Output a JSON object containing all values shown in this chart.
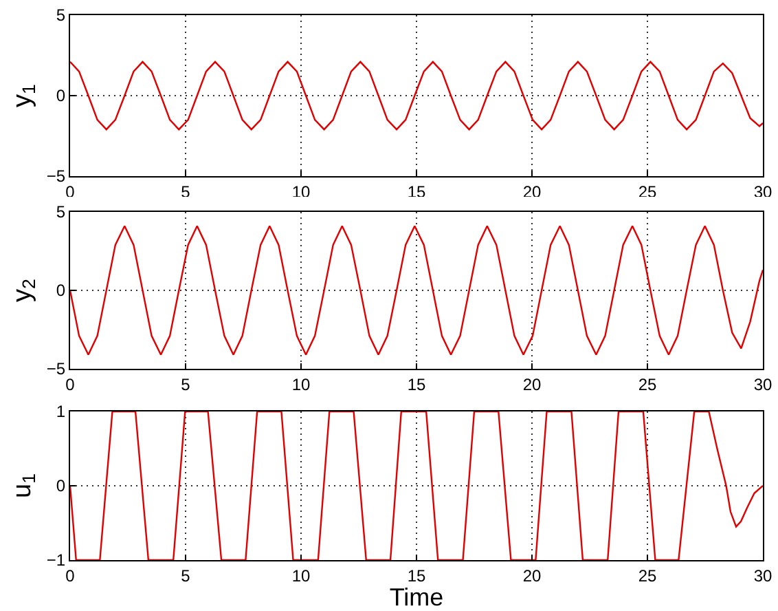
{
  "chart_data": [
    {
      "type": "line",
      "ylabel": "y$_{1}$",
      "xlim": [
        0,
        30
      ],
      "ylim": [
        -5,
        5
      ],
      "xticks": [
        0,
        5,
        10,
        15,
        20,
        25,
        30
      ],
      "yticks": [
        -5,
        0,
        5
      ],
      "grid": true,
      "series": [
        {
          "color": "#e00000",
          "x": [
            0,
            0.39,
            0.79,
            1.18,
            1.57,
            1.96,
            2.36,
            2.75,
            3.14,
            3.53,
            3.93,
            4.32,
            4.71,
            5.11,
            5.5,
            5.89,
            6.28,
            6.68,
            7.07,
            7.46,
            7.85,
            8.25,
            8.64,
            9.03,
            9.42,
            9.82,
            10.21,
            10.6,
            11,
            11.39,
            11.78,
            12.17,
            12.57,
            12.96,
            13.35,
            13.74,
            14.14,
            14.53,
            14.92,
            15.32,
            15.71,
            16.1,
            16.49,
            16.89,
            17.28,
            17.67,
            18.06,
            18.46,
            18.85,
            19.24,
            19.63,
            20.03,
            20.42,
            20.81,
            21.21,
            21.6,
            21.99,
            22.38,
            22.78,
            23.17,
            23.56,
            23.95,
            24.35,
            24.74,
            25.13,
            25.53,
            25.92,
            26.31,
            26.7,
            27.1,
            27.49,
            27.88,
            28.27,
            28.67,
            29.06,
            29.45,
            29.85,
            30
          ],
          "values": [
            2.1,
            1.5,
            0,
            -1.5,
            -2.1,
            -1.5,
            0,
            1.5,
            2.1,
            1.5,
            0,
            -1.5,
            -2.1,
            -1.5,
            0,
            1.5,
            2.1,
            1.5,
            0,
            -1.5,
            -2.1,
            -1.5,
            0,
            1.5,
            2.1,
            1.5,
            0,
            -1.5,
            -2.1,
            -1.5,
            0,
            1.5,
            2.1,
            1.5,
            0,
            -1.5,
            -2.1,
            -1.5,
            0,
            1.5,
            2.1,
            1.5,
            0,
            -1.5,
            -2.1,
            -1.5,
            0,
            1.5,
            2.1,
            1.5,
            0,
            -1.5,
            -2.1,
            -1.5,
            0,
            1.5,
            2.1,
            1.5,
            0,
            -1.5,
            -2.1,
            -1.5,
            0,
            1.5,
            2.1,
            1.5,
            0,
            -1.5,
            -2.1,
            -1.5,
            0,
            1.5,
            2.0,
            1.4,
            0,
            -1.4,
            -1.9,
            -1.7
          ]
        }
      ]
    },
    {
      "type": "line",
      "ylabel": "y$_{2}$",
      "xlim": [
        0,
        30
      ],
      "ylim": [
        -5,
        5
      ],
      "xticks": [
        0,
        5,
        10,
        15,
        20,
        25,
        30
      ],
      "yticks": [
        -5,
        0,
        5
      ],
      "grid": true,
      "series": [
        {
          "color": "#e00000",
          "x": [
            0,
            0.39,
            0.79,
            1.18,
            1.57,
            1.96,
            2.36,
            2.75,
            3.14,
            3.53,
            3.93,
            4.32,
            4.71,
            5.11,
            5.5,
            5.89,
            6.28,
            6.68,
            7.07,
            7.46,
            7.85,
            8.25,
            8.64,
            9.03,
            9.42,
            9.82,
            10.21,
            10.6,
            11,
            11.39,
            11.78,
            12.17,
            12.57,
            12.96,
            13.35,
            13.74,
            14.14,
            14.53,
            14.92,
            15.32,
            15.71,
            16.1,
            16.49,
            16.89,
            17.28,
            17.67,
            18.06,
            18.46,
            18.85,
            19.24,
            19.63,
            20.03,
            20.42,
            20.81,
            21.21,
            21.6,
            21.99,
            22.38,
            22.78,
            23.17,
            23.56,
            23.95,
            24.35,
            24.74,
            25.13,
            25.53,
            25.92,
            26.31,
            26.7,
            27.1,
            27.49,
            27.88,
            28.27,
            28.67,
            29.06,
            29.45,
            29.85,
            30
          ],
          "values": [
            0,
            -2.9,
            -4.1,
            -2.9,
            0,
            2.9,
            4.1,
            2.9,
            0,
            -2.9,
            -4.1,
            -2.9,
            0,
            2.9,
            4.1,
            2.9,
            0,
            -2.9,
            -4.1,
            -2.9,
            0,
            2.9,
            4.1,
            2.9,
            0,
            -2.9,
            -4.1,
            -2.9,
            0,
            2.9,
            4.1,
            2.9,
            0,
            -2.9,
            -4.1,
            -2.9,
            0,
            2.9,
            4.1,
            2.9,
            0,
            -2.9,
            -4.1,
            -2.9,
            0,
            2.9,
            4.1,
            2.9,
            0,
            -2.9,
            -4.1,
            -2.9,
            0,
            2.9,
            4.1,
            2.9,
            0,
            -2.9,
            -4.1,
            -2.9,
            0,
            2.9,
            4.1,
            2.9,
            0,
            -2.9,
            -4.1,
            -2.9,
            0,
            2.9,
            4.1,
            2.9,
            0,
            -2.7,
            -3.7,
            -2.0,
            0.6,
            1.3
          ]
        }
      ]
    },
    {
      "type": "line",
      "ylabel": "u$_{1}$",
      "xlabel": "Time",
      "xlim": [
        0,
        30
      ],
      "ylim": [
        -1,
        1
      ],
      "xticks": [
        0,
        5,
        10,
        15,
        20,
        25,
        30
      ],
      "yticks": [
        -1,
        0,
        1
      ],
      "grid": true,
      "series": [
        {
          "color": "#e00000",
          "x": [
            0,
            0.26,
            1.29,
            1.83,
            2.83,
            3.39,
            4.47,
            4.98,
            5.97,
            6.55,
            7.6,
            8.1,
            9.15,
            9.66,
            10.74,
            11.23,
            12.28,
            12.82,
            13.87,
            14.34,
            15.42,
            15.93,
            17.01,
            17.5,
            18.55,
            19.09,
            20.16,
            20.64,
            21.71,
            22.2,
            23.28,
            23.75,
            24.82,
            25.34,
            26.35,
            27.03,
            27.66,
            28.02,
            28.41,
            28.6,
            28.84,
            29.05,
            29.31,
            29.63,
            30
          ],
          "values": [
            0,
            -1,
            -1,
            1,
            1,
            -1,
            -1,
            1,
            1,
            -1,
            -1,
            1,
            1,
            -1,
            -1,
            1,
            1,
            -1,
            -1,
            1,
            1,
            -1,
            -1,
            1,
            1,
            -1,
            -1,
            1,
            1,
            -1,
            -1,
            1,
            1,
            -1,
            -1,
            1,
            1,
            0.5,
            0,
            -0.35,
            -0.55,
            -0.48,
            -0.3,
            -0.1,
            0
          ]
        }
      ]
    }
  ]
}
